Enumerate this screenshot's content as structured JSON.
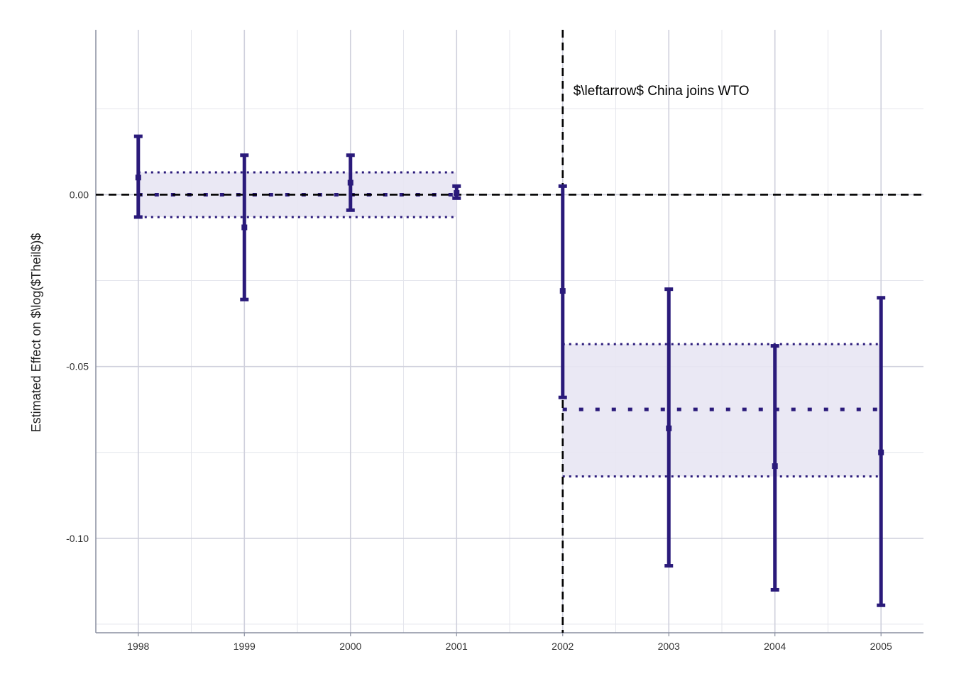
{
  "chart_data": {
    "type": "errorbar",
    "title": "",
    "xlabel": "",
    "ylabel": "Estimated Effect on $\\log($Theil$)$",
    "x_ticks": [
      "1998",
      "1999",
      "2000",
      "2001",
      "2002",
      "2003",
      "2004",
      "2005"
    ],
    "y_ticks": [
      "0.00",
      "-0.05",
      "-0.10"
    ],
    "y_tick_values": [
      0.0,
      -0.05,
      -0.1
    ],
    "xlim": [
      1997.6,
      2005.4
    ],
    "ylim": [
      -0.1275,
      0.048
    ],
    "grid": true,
    "series": [
      {
        "x": [
          1998,
          1999,
          2000,
          2001,
          2002,
          2003,
          2004,
          2005
        ],
        "estimate": [
          0.005,
          -0.0095,
          0.0035,
          0.0005,
          -0.028,
          -0.068,
          -0.079,
          -0.075
        ],
        "ci_low": [
          -0.0065,
          -0.0305,
          -0.0045,
          -0.001,
          -0.059,
          -0.108,
          -0.115,
          -0.1195
        ],
        "ci_high": [
          0.017,
          0.0115,
          0.0115,
          0.0025,
          0.0025,
          -0.0275,
          -0.044,
          -0.03
        ]
      }
    ],
    "pooled_bands": [
      {
        "x_range": [
          1998,
          2001
        ],
        "estimate": 0.0,
        "ci_low": -0.0065,
        "ci_high": 0.0065
      },
      {
        "x_range": [
          2002,
          2005
        ],
        "estimate": -0.0625,
        "ci_low": -0.082,
        "ci_high": -0.0435
      }
    ],
    "reference_lines": {
      "hline_y": 0.0,
      "vline_x": 2002
    },
    "annotation": {
      "text": "$\\leftarrow$ China joins WTO",
      "x": 2002.1,
      "y": 0.029
    },
    "colors": {
      "series": "#2a1a7a",
      "band_fill": "#e8e6f3",
      "grid_major": "#cfd0dc",
      "grid_minor": "#e4e5ec",
      "axis": "#8a8fa0",
      "reference": "#000000"
    }
  }
}
